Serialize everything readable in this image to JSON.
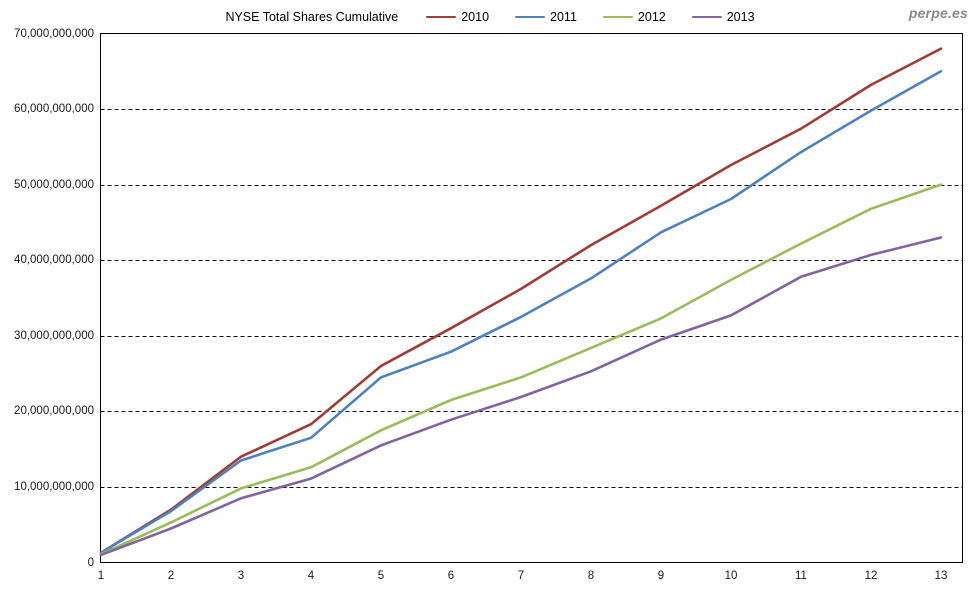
{
  "watermark": {
    "text": "perpe.es",
    "color": "#8a8a8a"
  },
  "chart_data": {
    "type": "line",
    "title": "NYSE Total Shares Cumulative",
    "xlabel": "",
    "ylabel": "",
    "x": [
      1,
      2,
      3,
      4,
      5,
      6,
      7,
      8,
      9,
      10,
      11,
      12,
      13
    ],
    "xtick_labels": [
      "1",
      "2",
      "3",
      "4",
      "5",
      "6",
      "7",
      "8",
      "9",
      "10",
      "11",
      "12",
      "13"
    ],
    "ylim": [
      0,
      70000000000
    ],
    "ytick_step": 10000000000,
    "ytick_labels": [
      "0",
      "10,000,000,000",
      "20,000,000,000",
      "30,000,000,000",
      "40,000,000,000",
      "50,000,000,000",
      "60,000,000,000",
      "70,000,000,000"
    ],
    "grid": "horizontal-dashed",
    "legend_position": "top",
    "series": [
      {
        "name": "2010",
        "color": "#9E3D35",
        "values": [
          1300000000,
          7000000000,
          14000000000,
          18300000000,
          26000000000,
          31000000000,
          36200000000,
          42000000000,
          47200000000,
          52600000000,
          57400000000,
          63200000000,
          68000000000
        ]
      },
      {
        "name": "2011",
        "color": "#4F81BD",
        "values": [
          1300000000,
          6800000000,
          13500000000,
          16500000000,
          24500000000,
          27900000000,
          32500000000,
          37600000000,
          43700000000,
          48100000000,
          54300000000,
          59800000000,
          65000000000
        ]
      },
      {
        "name": "2012",
        "color": "#9BBB59",
        "values": [
          1100000000,
          5300000000,
          9800000000,
          12600000000,
          17500000000,
          21500000000,
          24500000000,
          28400000000,
          32300000000,
          37400000000,
          42200000000,
          46800000000,
          50000000000
        ]
      },
      {
        "name": "2013",
        "color": "#8064A2",
        "values": [
          1000000000,
          4500000000,
          8500000000,
          11100000000,
          15500000000,
          18900000000,
          21900000000,
          25300000000,
          29500000000,
          32700000000,
          37800000000,
          40700000000,
          43000000000
        ]
      }
    ]
  },
  "colors": {
    "grid": "#000000",
    "border": "#000000",
    "background": "#ffffff",
    "tick_text": "#1a1a1a"
  }
}
